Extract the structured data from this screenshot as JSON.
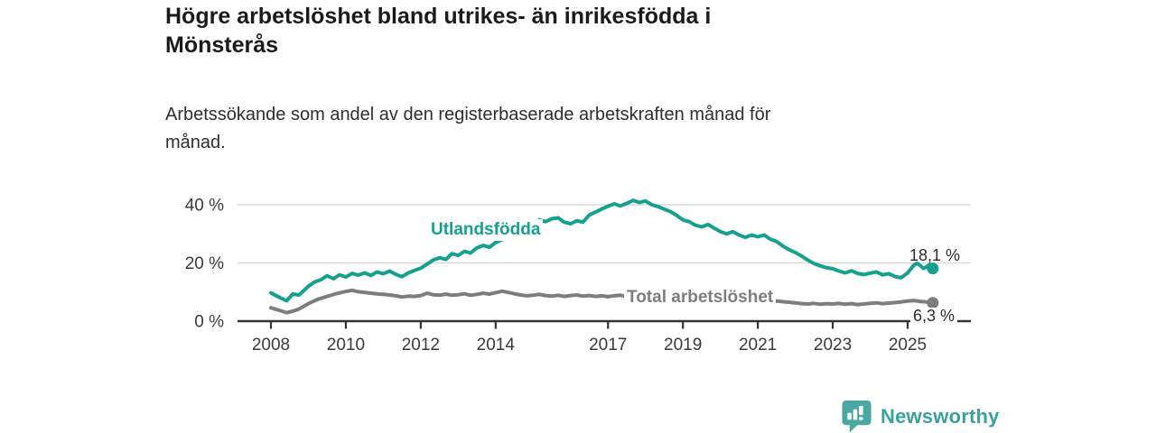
{
  "title": "Högre arbetslöshet bland utrikes- än inrikesfödda i Mönsterås",
  "subtitle": "Arbetssökande som andel av den registerbaserade arbetskraften månad för månad.",
  "footer": {
    "brand": "Newsworthy",
    "logo_icon": "newsworthy-speech-bubble-bar-chart-icon"
  },
  "colors": {
    "accent_teal": "#16a08e",
    "series_gray": "#7d7d7d",
    "axis": "#333333",
    "grid": "#d9d9d9",
    "tick_text": "#3a3a3a",
    "brand_teal": "#3aa29b",
    "brand_icon_teal": "#4aa8a2"
  },
  "chart_data": {
    "type": "line",
    "x_unit": "year (monthly observations)",
    "xlabel": "",
    "ylabel": "",
    "xlim": [
      2008,
      2025.7
    ],
    "ylim": [
      0,
      44
    ],
    "grid": true,
    "legend": "inline labels next to lines",
    "x_ticks": [
      2008,
      2010,
      2012,
      2014,
      2017,
      2019,
      2021,
      2023,
      2025
    ],
    "y_ticks": [
      {
        "value": 40,
        "label": "40 %"
      },
      {
        "value": 20,
        "label": "20 %"
      },
      {
        "value": 0,
        "label": "0 %"
      }
    ],
    "series": [
      {
        "name": "Utlandsfödda",
        "color": "#16a08e",
        "end_value": 18.1,
        "end_label": "18,1 %",
        "points": [
          [
            2008.0,
            9.7
          ],
          [
            2008.25,
            8.0
          ],
          [
            2008.42,
            7.0
          ],
          [
            2008.58,
            9.3
          ],
          [
            2008.75,
            9.0
          ],
          [
            2008.92,
            11.0
          ],
          [
            2009.0,
            12.0
          ],
          [
            2009.17,
            13.5
          ],
          [
            2009.33,
            14.2
          ],
          [
            2009.5,
            15.6
          ],
          [
            2009.67,
            14.6
          ],
          [
            2009.83,
            15.9
          ],
          [
            2010.0,
            15.2
          ],
          [
            2010.17,
            16.4
          ],
          [
            2010.33,
            15.8
          ],
          [
            2010.5,
            16.6
          ],
          [
            2010.67,
            15.7
          ],
          [
            2010.83,
            16.9
          ],
          [
            2011.0,
            16.3
          ],
          [
            2011.17,
            17.2
          ],
          [
            2011.33,
            16.1
          ],
          [
            2011.5,
            15.3
          ],
          [
            2011.67,
            16.6
          ],
          [
            2011.83,
            17.4
          ],
          [
            2012.0,
            18.2
          ],
          [
            2012.17,
            19.6
          ],
          [
            2012.33,
            21.0
          ],
          [
            2012.5,
            21.8
          ],
          [
            2012.67,
            21.2
          ],
          [
            2012.83,
            23.2
          ],
          [
            2013.0,
            22.6
          ],
          [
            2013.17,
            24.0
          ],
          [
            2013.33,
            23.4
          ],
          [
            2013.5,
            25.2
          ],
          [
            2013.67,
            26.0
          ],
          [
            2013.83,
            25.4
          ],
          [
            2014.0,
            27.0
          ],
          [
            2014.25,
            28.5
          ],
          [
            2014.5,
            29.3
          ],
          [
            2014.75,
            30.5
          ],
          [
            2015.0,
            32.5
          ],
          [
            2015.17,
            34.8
          ],
          [
            2015.33,
            34.2
          ],
          [
            2015.5,
            35.2
          ],
          [
            2015.67,
            35.5
          ],
          [
            2015.83,
            34.0
          ],
          [
            2016.0,
            33.5
          ],
          [
            2016.17,
            34.5
          ],
          [
            2016.33,
            34.0
          ],
          [
            2016.5,
            36.5
          ],
          [
            2016.67,
            37.5
          ],
          [
            2016.83,
            38.5
          ],
          [
            2017.0,
            39.5
          ],
          [
            2017.17,
            40.3
          ],
          [
            2017.33,
            39.6
          ],
          [
            2017.5,
            40.5
          ],
          [
            2017.67,
            41.5
          ],
          [
            2017.83,
            40.8
          ],
          [
            2018.0,
            41.3
          ],
          [
            2018.17,
            40.0
          ],
          [
            2018.33,
            39.4
          ],
          [
            2018.5,
            38.5
          ],
          [
            2018.67,
            37.6
          ],
          [
            2018.83,
            36.4
          ],
          [
            2019.0,
            34.8
          ],
          [
            2019.17,
            34.2
          ],
          [
            2019.33,
            33.0
          ],
          [
            2019.5,
            32.4
          ],
          [
            2019.67,
            33.2
          ],
          [
            2019.83,
            32.0
          ],
          [
            2020.0,
            30.8
          ],
          [
            2020.17,
            30.0
          ],
          [
            2020.33,
            30.8
          ],
          [
            2020.5,
            29.6
          ],
          [
            2020.67,
            28.8
          ],
          [
            2020.83,
            29.6
          ],
          [
            2021.0,
            29.0
          ],
          [
            2021.17,
            29.6
          ],
          [
            2021.33,
            28.2
          ],
          [
            2021.5,
            27.4
          ],
          [
            2021.67,
            25.8
          ],
          [
            2021.83,
            24.6
          ],
          [
            2022.0,
            23.6
          ],
          [
            2022.17,
            22.4
          ],
          [
            2022.33,
            21.0
          ],
          [
            2022.5,
            19.8
          ],
          [
            2022.67,
            19.0
          ],
          [
            2022.83,
            18.4
          ],
          [
            2023.0,
            18.0
          ],
          [
            2023.17,
            17.2
          ],
          [
            2023.33,
            16.6
          ],
          [
            2023.5,
            17.3
          ],
          [
            2023.67,
            16.4
          ],
          [
            2023.83,
            16.0
          ],
          [
            2024.0,
            16.5
          ],
          [
            2024.17,
            16.9
          ],
          [
            2024.33,
            15.9
          ],
          [
            2024.5,
            16.3
          ],
          [
            2024.67,
            15.3
          ],
          [
            2024.83,
            14.9
          ],
          [
            2025.0,
            16.6
          ],
          [
            2025.17,
            19.3
          ],
          [
            2025.25,
            19.9
          ],
          [
            2025.33,
            19.2
          ],
          [
            2025.42,
            18.1
          ],
          [
            2025.5,
            18.6
          ],
          [
            2025.58,
            19.4
          ],
          [
            2025.67,
            18.1
          ]
        ]
      },
      {
        "name": "Total arbetslöshet",
        "color": "#7d7d7d",
        "end_value": 6.3,
        "end_label": "6,3 %",
        "points": [
          [
            2008.0,
            4.6
          ],
          [
            2008.25,
            3.6
          ],
          [
            2008.42,
            2.9
          ],
          [
            2008.58,
            3.4
          ],
          [
            2008.75,
            4.2
          ],
          [
            2009.0,
            6.0
          ],
          [
            2009.25,
            7.5
          ],
          [
            2009.5,
            8.5
          ],
          [
            2009.75,
            9.5
          ],
          [
            2010.0,
            10.2
          ],
          [
            2010.17,
            10.6
          ],
          [
            2010.33,
            10.1
          ],
          [
            2010.5,
            9.9
          ],
          [
            2010.67,
            9.6
          ],
          [
            2010.83,
            9.4
          ],
          [
            2011.0,
            9.2
          ],
          [
            2011.17,
            9.0
          ],
          [
            2011.33,
            8.7
          ],
          [
            2011.5,
            8.3
          ],
          [
            2011.67,
            8.6
          ],
          [
            2011.83,
            8.5
          ],
          [
            2012.0,
            8.8
          ],
          [
            2012.17,
            9.6
          ],
          [
            2012.33,
            9.1
          ],
          [
            2012.5,
            8.9
          ],
          [
            2012.67,
            9.3
          ],
          [
            2012.83,
            8.9
          ],
          [
            2013.0,
            9.1
          ],
          [
            2013.17,
            9.4
          ],
          [
            2013.33,
            8.9
          ],
          [
            2013.5,
            9.2
          ],
          [
            2013.67,
            9.6
          ],
          [
            2013.83,
            9.3
          ],
          [
            2014.0,
            9.8
          ],
          [
            2014.17,
            10.3
          ],
          [
            2014.33,
            9.9
          ],
          [
            2014.5,
            9.4
          ],
          [
            2014.67,
            9.0
          ],
          [
            2014.83,
            8.7
          ],
          [
            2015.0,
            8.9
          ],
          [
            2015.17,
            9.2
          ],
          [
            2015.33,
            8.8
          ],
          [
            2015.5,
            8.6
          ],
          [
            2015.67,
            8.9
          ],
          [
            2015.83,
            8.5
          ],
          [
            2016.0,
            8.8
          ],
          [
            2016.17,
            9.0
          ],
          [
            2016.33,
            8.6
          ],
          [
            2016.5,
            8.8
          ],
          [
            2016.67,
            8.5
          ],
          [
            2016.83,
            8.7
          ],
          [
            2017.0,
            8.4
          ],
          [
            2017.17,
            8.7
          ],
          [
            2017.33,
            8.9
          ],
          [
            2017.5,
            8.5
          ],
          [
            2017.67,
            8.3
          ],
          [
            2017.83,
            8.6
          ],
          [
            2018.0,
            8.4
          ],
          [
            2018.17,
            8.2
          ],
          [
            2018.33,
            8.5
          ],
          [
            2018.5,
            8.3
          ],
          [
            2018.67,
            8.1
          ],
          [
            2018.83,
            8.4
          ],
          [
            2019.0,
            8.2
          ],
          [
            2019.25,
            8.0
          ],
          [
            2019.5,
            7.9
          ],
          [
            2019.75,
            8.3
          ],
          [
            2020.0,
            8.8
          ],
          [
            2020.25,
            9.0
          ],
          [
            2020.5,
            8.6
          ],
          [
            2020.75,
            8.1
          ],
          [
            2021.0,
            7.6
          ],
          [
            2021.25,
            7.2
          ],
          [
            2021.5,
            6.9
          ],
          [
            2021.75,
            6.6
          ],
          [
            2022.0,
            6.3
          ],
          [
            2022.17,
            6.0
          ],
          [
            2022.33,
            5.9
          ],
          [
            2022.5,
            6.1
          ],
          [
            2022.67,
            5.8
          ],
          [
            2022.83,
            6.0
          ],
          [
            2023.0,
            5.9
          ],
          [
            2023.17,
            6.1
          ],
          [
            2023.33,
            5.8
          ],
          [
            2023.5,
            6.0
          ],
          [
            2023.67,
            5.7
          ],
          [
            2023.83,
            5.9
          ],
          [
            2024.0,
            6.1
          ],
          [
            2024.17,
            6.3
          ],
          [
            2024.33,
            6.0
          ],
          [
            2024.5,
            6.2
          ],
          [
            2024.67,
            6.4
          ],
          [
            2024.83,
            6.6
          ],
          [
            2025.0,
            6.9
          ],
          [
            2025.17,
            7.1
          ],
          [
            2025.33,
            6.8
          ],
          [
            2025.5,
            6.6
          ],
          [
            2025.67,
            6.3
          ]
        ]
      }
    ]
  }
}
